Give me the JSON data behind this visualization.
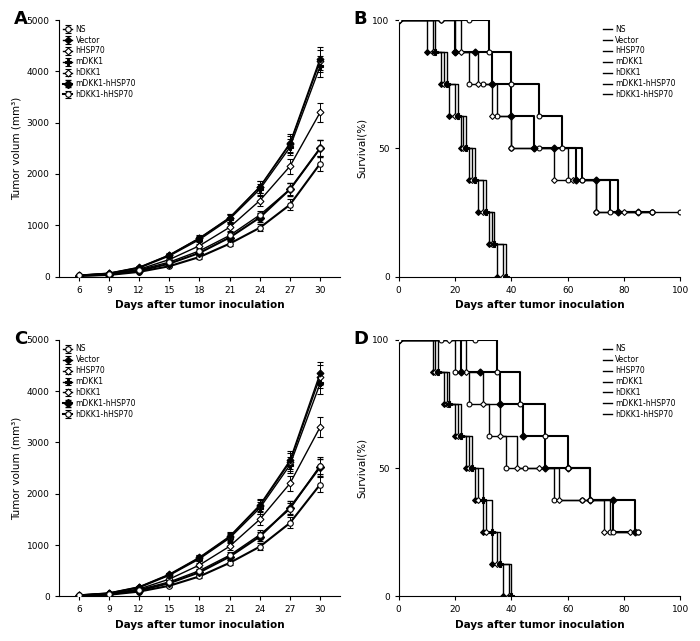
{
  "panel_labels": [
    "A",
    "B",
    "C",
    "D"
  ],
  "legend_labels": [
    "NS",
    "Vector",
    "hHSP70",
    "mDKK1",
    "hDKK1",
    "mDKK1-hHSP70",
    "hDKK1-hHSP70"
  ],
  "days_tumor": [
    6,
    9,
    12,
    15,
    18,
    21,
    24,
    27,
    30
  ],
  "tumor_A": [
    [
      20,
      50,
      130,
      280,
      500,
      800,
      1200,
      1700,
      2500
    ],
    [
      25,
      65,
      180,
      420,
      750,
      1150,
      1750,
      2600,
      4250
    ],
    [
      25,
      62,
      175,
      415,
      745,
      1140,
      1740,
      2580,
      4200
    ],
    [
      22,
      58,
      165,
      400,
      720,
      1120,
      1700,
      2520,
      4100
    ],
    [
      18,
      48,
      140,
      330,
      600,
      960,
      1480,
      2150,
      3200
    ],
    [
      15,
      38,
      110,
      250,
      460,
      760,
      1150,
      1700,
      2500
    ],
    [
      12,
      30,
      90,
      200,
      380,
      640,
      950,
      1400,
      2200
    ]
  ],
  "tumor_A_err": [
    [
      3,
      6,
      12,
      22,
      38,
      58,
      85,
      120,
      160
    ],
    [
      4,
      9,
      18,
      32,
      52,
      78,
      118,
      170,
      220
    ],
    [
      4,
      9,
      17,
      31,
      50,
      76,
      115,
      165,
      215
    ],
    [
      3,
      8,
      15,
      29,
      47,
      72,
      108,
      158,
      205
    ],
    [
      3,
      7,
      13,
      25,
      42,
      65,
      98,
      145,
      190
    ],
    [
      3,
      6,
      11,
      20,
      36,
      57,
      82,
      122,
      162
    ],
    [
      2,
      5,
      9,
      17,
      30,
      50,
      72,
      105,
      145
    ]
  ],
  "tumor_C": [
    [
      20,
      50,
      130,
      280,
      500,
      800,
      1200,
      1700,
      2550
    ],
    [
      25,
      65,
      185,
      430,
      760,
      1170,
      1780,
      2650,
      4350
    ],
    [
      25,
      62,
      180,
      420,
      750,
      1155,
      1760,
      2620,
      4280
    ],
    [
      22,
      58,
      168,
      408,
      730,
      1135,
      1720,
      2560,
      4150
    ],
    [
      18,
      48,
      142,
      335,
      610,
      975,
      1500,
      2200,
      3300
    ],
    [
      15,
      38,
      112,
      255,
      468,
      772,
      1165,
      1730,
      2520
    ],
    [
      12,
      30,
      92,
      205,
      388,
      652,
      968,
      1430,
      2180
    ]
  ],
  "tumor_C_err": [
    [
      3,
      6,
      12,
      22,
      38,
      58,
      85,
      120,
      162
    ],
    [
      4,
      9,
      19,
      33,
      54,
      80,
      120,
      175,
      228
    ],
    [
      4,
      9,
      18,
      32,
      52,
      78,
      117,
      170,
      222
    ],
    [
      3,
      8,
      16,
      30,
      49,
      74,
      110,
      162,
      208
    ],
    [
      3,
      7,
      13,
      26,
      43,
      67,
      100,
      148,
      193
    ],
    [
      3,
      6,
      11,
      21,
      37,
      58,
      84,
      125,
      165
    ],
    [
      2,
      5,
      9,
      18,
      31,
      51,
      73,
      107,
      147
    ]
  ],
  "surv_B": {
    "NS": [
      [
        0,
        15,
        20,
        25,
        30,
        35,
        40,
        50,
        60,
        65,
        70,
        90,
        100
      ],
      [
        100,
        100,
        87.5,
        75,
        75,
        62.5,
        50,
        50,
        37.5,
        37.5,
        25,
        25,
        25
      ]
    ],
    "Vector": [
      [
        0,
        10,
        15,
        18,
        22,
        25,
        28,
        32,
        35
      ],
      [
        100,
        87.5,
        75,
        62.5,
        50,
        37.5,
        25,
        12.5,
        0
      ]
    ],
    "hHSP70": [
      [
        0,
        12,
        16,
        20,
        23,
        26,
        30,
        33,
        37
      ],
      [
        100,
        87.5,
        75,
        62.5,
        50,
        37.5,
        25,
        12.5,
        0
      ]
    ],
    "mDKK1": [
      [
        0,
        13,
        17,
        21,
        24,
        27,
        31,
        34,
        38
      ],
      [
        100,
        87.5,
        75,
        62.5,
        50,
        37.5,
        25,
        12.5,
        0
      ]
    ],
    "hDKK1": [
      [
        0,
        15,
        22,
        28,
        33,
        40,
        48,
        55,
        62,
        70,
        80,
        90
      ],
      [
        100,
        100,
        87.5,
        75,
        62.5,
        50,
        50,
        37.5,
        37.5,
        25,
        25,
        25
      ]
    ],
    "mDKK1-hHSP70": [
      [
        0,
        20,
        27,
        33,
        40,
        48,
        55,
        63,
        70,
        78,
        85
      ],
      [
        100,
        87.5,
        87.5,
        75,
        62.5,
        50,
        50,
        37.5,
        37.5,
        25,
        25
      ]
    ],
    "hDKK1-hHSP70": [
      [
        0,
        25,
        32,
        40,
        50,
        58,
        65,
        75,
        85,
        90
      ],
      [
        100,
        100,
        87.5,
        75,
        62.5,
        50,
        37.5,
        25,
        25,
        25
      ]
    ]
  },
  "surv_D": {
    "NS": [
      [
        0,
        15,
        20,
        25,
        32,
        38,
        45,
        55,
        65,
        75,
        85
      ],
      [
        100,
        100,
        87.5,
        75,
        62.5,
        50,
        50,
        37.5,
        37.5,
        25,
        25
      ]
    ],
    "Vector": [
      [
        0,
        12,
        16,
        20,
        24,
        27,
        30,
        33,
        37
      ],
      [
        100,
        87.5,
        75,
        62.5,
        50,
        37.5,
        25,
        12.5,
        0
      ]
    ],
    "hHSP70": [
      [
        0,
        13,
        17,
        21,
        25,
        28,
        31,
        35,
        39
      ],
      [
        100,
        87.5,
        75,
        62.5,
        50,
        37.5,
        25,
        12.5,
        0
      ]
    ],
    "mDKK1": [
      [
        0,
        14,
        18,
        22,
        26,
        30,
        33,
        36,
        40
      ],
      [
        100,
        87.5,
        75,
        62.5,
        50,
        37.5,
        25,
        12.5,
        0
      ]
    ],
    "hDKK1": [
      [
        0,
        18,
        24,
        30,
        36,
        42,
        50,
        57,
        65,
        73,
        82
      ],
      [
        100,
        100,
        87.5,
        75,
        62.5,
        50,
        50,
        37.5,
        37.5,
        25,
        25
      ]
    ],
    "mDKK1-hHSP70": [
      [
        0,
        22,
        29,
        36,
        44,
        52,
        60,
        68,
        76,
        84
      ],
      [
        100,
        87.5,
        87.5,
        75,
        62.5,
        50,
        50,
        37.5,
        37.5,
        25
      ]
    ],
    "hDKK1-hHSP70": [
      [
        0,
        27,
        35,
        43,
        52,
        60,
        68,
        76,
        85
      ],
      [
        100,
        100,
        87.5,
        75,
        62.5,
        50,
        37.5,
        25,
        25
      ]
    ]
  },
  "line_color": "#000000",
  "line_widths": [
    1.0,
    1.0,
    1.0,
    1.0,
    1.0,
    1.5,
    1.5
  ],
  "tumor_ylabel": "Tumor volum (mm³)",
  "tumor_xlabel": "Days after tumor inoculation",
  "surv_ylabel": "Survival(%)",
  "surv_xlabel": "Days after tumor inoculation",
  "tumor_ylim": [
    0,
    5000
  ],
  "tumor_yticks": [
    0,
    1000,
    2000,
    3000,
    4000,
    5000
  ],
  "surv_ylim": [
    0,
    100
  ],
  "surv_yticks": [
    0,
    50,
    100
  ],
  "surv_xlim": [
    0,
    100
  ],
  "surv_xticks": [
    0,
    20,
    40,
    60,
    80,
    100
  ]
}
